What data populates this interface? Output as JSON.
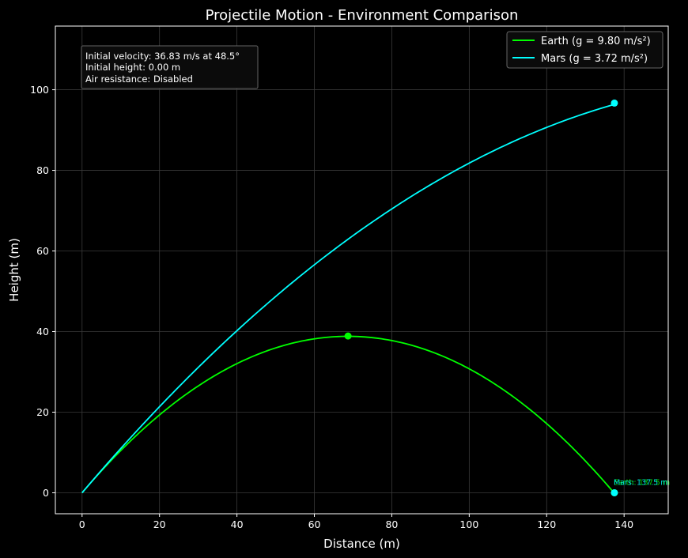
{
  "chart_data": {
    "type": "line",
    "title": "Projectile Motion - Environment Comparison",
    "xlabel": "Distance (m)",
    "ylabel": "Height (m)",
    "xlim": [
      -6.9,
      151.4
    ],
    "ylim": [
      -5.2,
      115.8
    ],
    "xticks": [
      0,
      20,
      40,
      60,
      80,
      100,
      120,
      140
    ],
    "yticks": [
      0,
      20,
      40,
      60,
      80,
      100
    ],
    "grid": true,
    "legend_position": "top-right",
    "info_box": [
      "Initial velocity: 36.83 m/s at 48.5°",
      "Initial height: 0.00 m",
      "Air resistance: Disabled"
    ],
    "launch": {
      "velocity": 36.83,
      "angle_deg": 48.5,
      "height": 0.0
    },
    "series": [
      {
        "name": "Earth (g = 9.80 m/s²)",
        "g": 9.8,
        "color": "#00ff00",
        "x_end": 137.5,
        "apex": [
          68.7,
          38.9
        ],
        "end_marker": [
          137.5,
          0
        ],
        "end_label": "Earth: 137.5 m"
      },
      {
        "name": "Mars (g = 3.72 m/s²)",
        "g": 3.72,
        "color": "#00ffff",
        "x_end": 137.5,
        "apex": null,
        "end_marker": [
          137.5,
          96.7
        ],
        "extra_marker": [
          137.5,
          0
        ],
        "end_label": "Mars: 137.5 m"
      }
    ]
  }
}
